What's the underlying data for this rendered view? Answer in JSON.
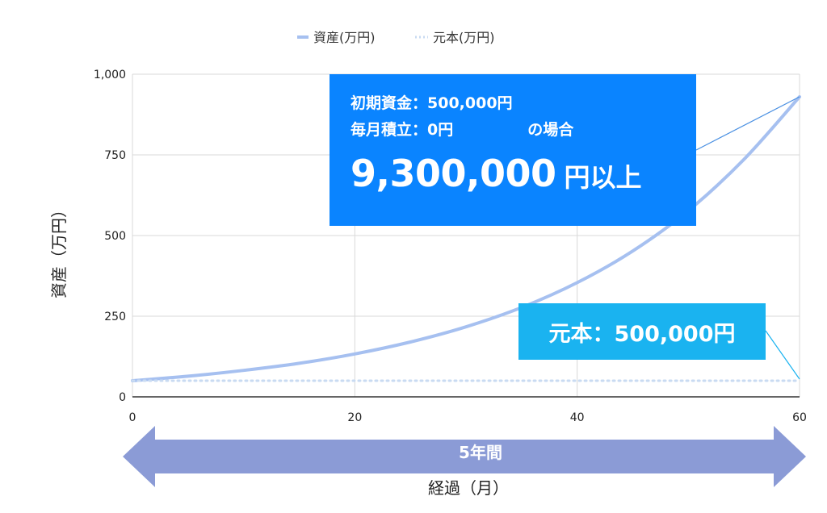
{
  "chart_data": {
    "type": "line",
    "legend": {
      "position": "top-center"
    },
    "series": [
      {
        "name": "資産(万円)",
        "color": "#a6c0f0",
        "style": "solid",
        "x": [
          0,
          5,
          10,
          15,
          20,
          25,
          30,
          35,
          40,
          45,
          50,
          55,
          60
        ],
        "y": [
          50,
          64,
          82,
          104,
          133,
          170,
          217,
          277,
          354,
          452,
          577,
          736,
          930
        ]
      },
      {
        "name": "元本(万円)",
        "color": "#c9dbf2",
        "style": "dotted",
        "x": [
          0,
          60
        ],
        "y": [
          50,
          50
        ]
      }
    ],
    "xlim": [
      0,
      60
    ],
    "ylim": [
      0,
      1000
    ],
    "xticks": [
      {
        "v": 0,
        "label": "0"
      },
      {
        "v": 20,
        "label": "20"
      },
      {
        "v": 40,
        "label": "40"
      },
      {
        "v": 60,
        "label": "60"
      }
    ],
    "yticks": [
      {
        "v": 0,
        "label": "0"
      },
      {
        "v": 250,
        "label": "250"
      },
      {
        "v": 500,
        "label": "500"
      },
      {
        "v": 750,
        "label": "750"
      },
      {
        "v": 1000,
        "label": "1,000"
      }
    ],
    "xlabel": "経過（月）",
    "ylabel": "資産（万円）",
    "grid": true
  },
  "callout": {
    "line1": "初期資金：500,000円",
    "line2a": "毎月積立：0円",
    "line2b": "の場合",
    "big_number": "9,300,000",
    "big_suffix": "円以上",
    "color": "#0a84ff"
  },
  "principal_callout": {
    "text": "元本：500,000円",
    "color": "#1ab3f0"
  },
  "period_arrow": {
    "label": "5年間",
    "color": "#8b9bd6"
  }
}
